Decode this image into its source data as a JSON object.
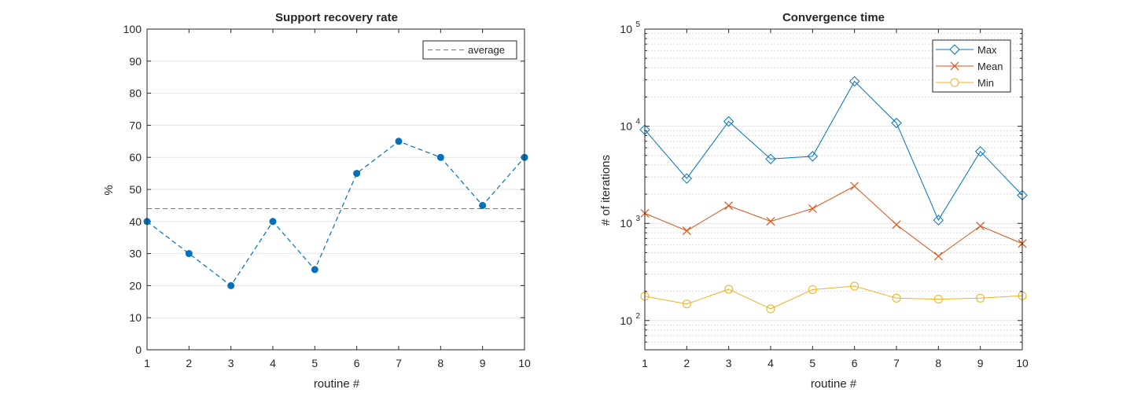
{
  "chart_data": [
    {
      "type": "line",
      "title": "Support recovery rate",
      "xlabel": "routine #",
      "ylabel": "%",
      "x": [
        1,
        2,
        3,
        4,
        5,
        6,
        7,
        8,
        9,
        10
      ],
      "xlim": [
        1,
        10
      ],
      "ylim": [
        0,
        100
      ],
      "xticks": [
        "1",
        "2",
        "3",
        "4",
        "5",
        "6",
        "7",
        "8",
        "9",
        "10"
      ],
      "yticks": [
        "0",
        "10",
        "20",
        "30",
        "40",
        "50",
        "60",
        "70",
        "80",
        "90",
        "100"
      ],
      "grid": "y",
      "legend_position": "top-right",
      "series": [
        {
          "values": [
            40,
            30,
            20,
            40,
            25,
            55,
            65,
            60,
            45,
            60
          ],
          "color": "#0072BD",
          "style": "dashed",
          "marker": "filled-circle"
        },
        {
          "name": "average",
          "values": [
            44,
            44,
            44,
            44,
            44,
            44,
            44,
            44,
            44,
            44
          ],
          "color": "#D95319",
          "style": "dashed",
          "marker": "none"
        }
      ]
    },
    {
      "type": "line",
      "title": "Convergence time",
      "xlabel": "routine #",
      "ylabel": "# of iterations",
      "yscale": "log",
      "x": [
        1,
        2,
        3,
        4,
        5,
        6,
        7,
        8,
        9,
        10
      ],
      "xlim": [
        1,
        10
      ],
      "ylim": [
        50,
        100000
      ],
      "xticks": [
        "1",
        "2",
        "3",
        "4",
        "5",
        "6",
        "7",
        "8",
        "9",
        "10"
      ],
      "yticks": [
        {
          "base": "10",
          "exp": "2"
        },
        {
          "base": "10",
          "exp": "3"
        },
        {
          "base": "10",
          "exp": "4"
        },
        {
          "base": "10",
          "exp": "5"
        }
      ],
      "grid": "y-minor",
      "legend_position": "top-right",
      "series": [
        {
          "name": "Max",
          "values": [
            9200,
            2900,
            11200,
            4600,
            4900,
            29000,
            10800,
            1080,
            5500,
            1950
          ],
          "color": "#0072BD",
          "marker": "diamond"
        },
        {
          "name": "Mean",
          "values": [
            1270,
            840,
            1520,
            1050,
            1420,
            2420,
            970,
            460,
            940,
            620
          ],
          "color": "#D95319",
          "marker": "x"
        },
        {
          "name": "Min",
          "values": [
            178,
            148,
            210,
            132,
            208,
            226,
            170,
            166,
            170,
            180
          ],
          "color": "#EDB120",
          "marker": "circle"
        }
      ]
    }
  ]
}
